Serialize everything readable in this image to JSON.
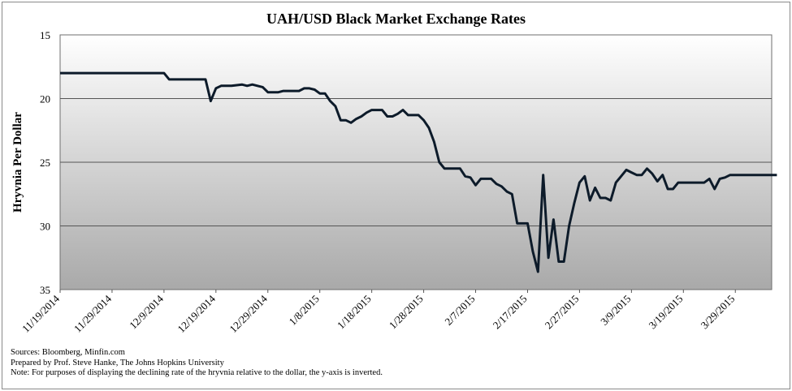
{
  "chart_data": {
    "type": "line",
    "title": "UAH/USD Black Market Exchange Rates",
    "xlabel": "",
    "ylabel": "Hryvnia Per Dollar",
    "ylim": [
      15,
      35
    ],
    "y_inverted": true,
    "yticks": [
      15,
      20,
      25,
      30,
      35
    ],
    "x_tick_labels": [
      "11/19/2014",
      "11/29/2014",
      "12/9/2014",
      "12/19/2014",
      "12/29/2014",
      "1/8/2015",
      "1/18/2015",
      "1/28/2015",
      "2/7/2015",
      "2/17/2015",
      "2/27/2015",
      "3/9/2015",
      "3/19/2015",
      "3/29/2015"
    ],
    "x_start": "11/19/2014",
    "grid": true,
    "legend": "none",
    "series": [
      {
        "name": "UAH/USD",
        "color": "#0d1b2a",
        "x_days": [
          0,
          20,
          21,
          28,
          29,
          30,
          31,
          32,
          33,
          35,
          36,
          37,
          38,
          39,
          40,
          41,
          42,
          43,
          44,
          45,
          46,
          47,
          48,
          49,
          50,
          51,
          52,
          53,
          54,
          55,
          56,
          57,
          58,
          59,
          60,
          61,
          62,
          63,
          64,
          65,
          66,
          67,
          68,
          69,
          70,
          71,
          72,
          73,
          74,
          75,
          76,
          77,
          78,
          79,
          80,
          81,
          82,
          83,
          84,
          85,
          86,
          87,
          88,
          89,
          90,
          91,
          92,
          93,
          94,
          95,
          96,
          97,
          98,
          99,
          100,
          101,
          102,
          103,
          104,
          105,
          106,
          107,
          108,
          109,
          110,
          111,
          112,
          113,
          114,
          115,
          116,
          117,
          118,
          119,
          120,
          121,
          122,
          123,
          124,
          125,
          126,
          127,
          128,
          129,
          130,
          131,
          132,
          133,
          134,
          135,
          136,
          137,
          138
        ],
        "values": [
          18.0,
          18.0,
          18.5,
          18.5,
          20.2,
          19.2,
          19.0,
          19.0,
          19.0,
          18.9,
          19.0,
          18.9,
          19.0,
          19.1,
          19.5,
          19.5,
          19.5,
          19.4,
          19.4,
          19.4,
          19.4,
          19.2,
          19.2,
          19.3,
          19.6,
          19.6,
          20.2,
          20.6,
          21.7,
          21.7,
          21.9,
          21.6,
          21.4,
          21.1,
          20.9,
          20.9,
          20.9,
          21.4,
          21.4,
          21.2,
          20.9,
          21.3,
          21.3,
          21.3,
          21.7,
          22.3,
          23.4,
          25.0,
          25.5,
          25.5,
          25.5,
          25.5,
          26.1,
          26.2,
          26.8,
          26.3,
          26.3,
          26.3,
          26.7,
          26.9,
          27.3,
          27.5,
          29.8,
          29.8,
          29.8,
          32.0,
          33.6,
          26.0,
          32.5,
          29.5,
          32.8,
          32.8,
          30.0,
          28.2,
          26.6,
          26.1,
          28.0,
          27.0,
          27.8,
          27.8,
          28.0,
          26.6,
          26.1,
          25.6,
          25.8,
          26.0,
          26.0,
          25.5,
          25.9,
          26.5,
          26.0,
          27.1,
          27.1,
          26.6,
          26.6,
          26.6,
          26.6,
          26.6,
          26.6,
          26.3,
          27.1,
          26.3,
          26.2,
          26.0,
          26.0,
          26.0,
          26.0,
          26.0,
          26.0,
          26.0,
          26.0,
          26.0,
          26.0
        ]
      }
    ]
  },
  "notes": {
    "sources": "Sources: Bloomberg, Minfin.com",
    "prepared": "Prepared by Prof. Steve Hanke, The Johns Hopkins University",
    "note": "Note: For purposes of displaying the declining rate of the hryvnia relative to the dollar, the y-axis is inverted."
  }
}
